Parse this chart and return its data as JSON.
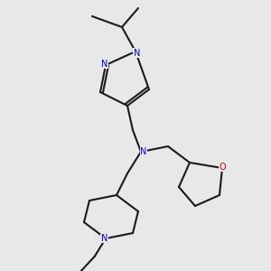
{
  "bg_color": "#e8e8e8",
  "bond_color": "#1a1a1a",
  "N_color": "#0000ff",
  "O_color": "#cc0000",
  "line_width": 1.5,
  "figsize": [
    3.0,
    3.0
  ],
  "dpi": 100,
  "xlim": [
    0,
    10
  ],
  "ylim": [
    0,
    10
  ]
}
